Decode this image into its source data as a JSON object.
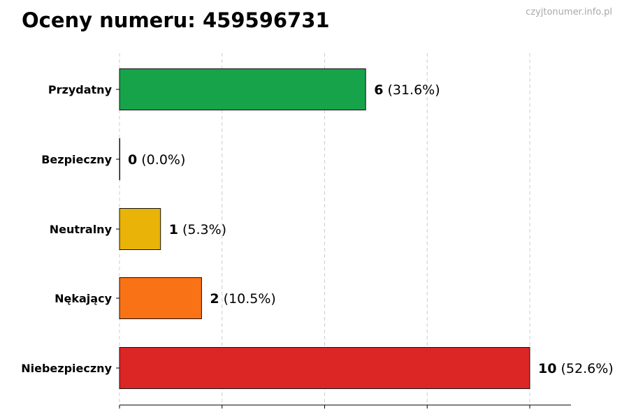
{
  "chart_data": {
    "type": "bar",
    "orientation": "horizontal",
    "title": "Oceny numeru: 459596731",
    "categories": [
      "Przydatny",
      "Bezpieczny",
      "Neutralny",
      "Nękający",
      "Niebezpieczny"
    ],
    "values": [
      6,
      0,
      1,
      2,
      10
    ],
    "value_labels": [
      "(31.6%)",
      "(0.0%)",
      "(5.3%)",
      "(10.5%)",
      "(52.6%)"
    ],
    "colors": [
      "#16a34a",
      "#999999",
      "#eab308",
      "#f97316",
      "#dc2626"
    ],
    "xlim": [
      0,
      11
    ],
    "xticks": [
      0,
      2.5,
      5,
      7.5,
      10
    ],
    "grid": "vertical dashed",
    "xlabel": "",
    "ylabel": ""
  },
  "watermark": "czyjtonumer.info.pl"
}
